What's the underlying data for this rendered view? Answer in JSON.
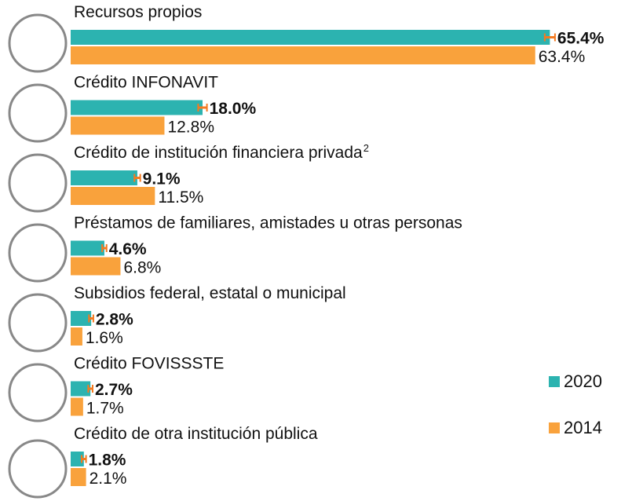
{
  "chart_data": {
    "type": "bar",
    "orientation": "horizontal",
    "categories": [
      "Recursos propios",
      "Crédito INFONAVIT",
      "Crédito de institución financiera privada",
      "Préstamos de familiares, amistades u otras personas",
      "Subsidios federal, estatal o municipal",
      "Crédito FOVISSSTE",
      "Crédito de otra institución pública"
    ],
    "category_notes": [
      null,
      null,
      "2",
      null,
      null,
      null,
      null
    ],
    "series": [
      {
        "name": "2020",
        "color": "#2cb3b0",
        "values": [
          65.4,
          18.0,
          9.1,
          4.6,
          2.8,
          2.7,
          1.8
        ],
        "value_labels": [
          "65.4%",
          "18.0%",
          "9.1%",
          "4.6%",
          "2.8%",
          "2.7%",
          "1.8%"
        ],
        "errors": [
          0.7,
          0.6,
          0.4,
          0.3,
          0.3,
          0.3,
          0.3
        ],
        "error_color": "#f47a20"
      },
      {
        "name": "2014",
        "color": "#f9a23c",
        "values": [
          63.4,
          12.8,
          11.5,
          6.8,
          1.6,
          1.7,
          2.1
        ],
        "value_labels": [
          "63.4%",
          "12.8%",
          "11.5%",
          "6.8%",
          "1.6%",
          "1.7%",
          "2.1%"
        ]
      }
    ],
    "xlim": [
      0,
      75
    ],
    "legend": "right"
  }
}
